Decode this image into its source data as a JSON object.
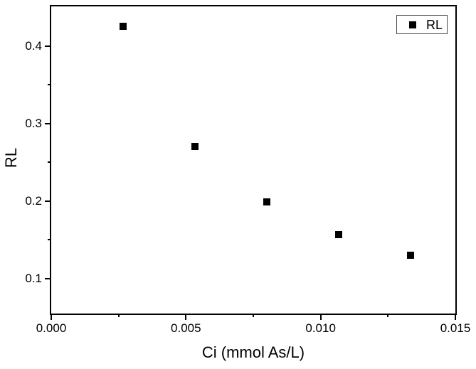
{
  "figure": {
    "background_color": "#ffffff",
    "axis_color": "#000000"
  },
  "chart_data": {
    "type": "scatter",
    "title": "",
    "xlabel": "Ci (mmol As/L)",
    "ylabel": "RL",
    "legend": {
      "entries": [
        "RL"
      ],
      "position": "top-right",
      "marker": "filled-square"
    },
    "marker": "filled-square",
    "marker_color": "#000000",
    "marker_size_px": 10,
    "grid": false,
    "xlim": [
      0,
      0.015
    ],
    "ylim": [
      0.055,
      0.451
    ],
    "x_major_ticks": {
      "values": [
        0,
        0.005,
        0.01,
        0.015
      ],
      "labels": [
        "0.000",
        "0.005",
        "0.010",
        "0.015"
      ]
    },
    "x_minor_ticks": [
      0.0025,
      0.0075,
      0.0125
    ],
    "y_major_ticks": {
      "values": [
        0.1,
        0.2,
        0.3,
        0.4
      ],
      "labels": [
        "0.1",
        "0.2",
        "0.3",
        "0.4"
      ]
    },
    "y_minor_ticks": [
      0.15,
      0.25,
      0.35
    ],
    "series": [
      {
        "name": "RL",
        "x": [
          0.00267,
          0.00534,
          0.00801,
          0.01068,
          0.01334
        ],
        "y": [
          0.425,
          0.27,
          0.199,
          0.157,
          0.13
        ]
      }
    ]
  }
}
